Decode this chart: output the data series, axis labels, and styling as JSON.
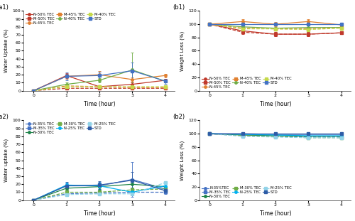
{
  "time": [
    0,
    1,
    2,
    3,
    4
  ],
  "a1": {
    "title": "(a1)",
    "ylabel": "Water Uptake (%)",
    "xlabel": "Time (hour)",
    "ylim": [
      0,
      100
    ],
    "yticks": [
      0,
      10,
      20,
      30,
      40,
      50,
      60,
      70,
      80,
      90,
      100
    ],
    "legend_loc": "upper left",
    "legend_inside": true,
    "series": [
      {
        "label": "N-50% TEC",
        "color": "#c0392b",
        "linestyle": "-",
        "marker": "o",
        "values": [
          0,
          19,
          5,
          8,
          13
        ],
        "yerr": [
          0,
          3,
          1,
          2,
          2
        ]
      },
      {
        "label": "M-50% TEC",
        "color": "#c0392b",
        "linestyle": "--",
        "marker": "s",
        "values": [
          0,
          3,
          3,
          3,
          3
        ],
        "yerr": [
          0,
          1,
          1,
          1,
          1
        ]
      },
      {
        "label": "N-45% TEC",
        "color": "#e08030",
        "linestyle": "-",
        "marker": "o",
        "values": [
          0,
          18,
          20,
          14,
          19
        ],
        "yerr": [
          0,
          3,
          5,
          3,
          2
        ]
      },
      {
        "label": "M-45% TEC",
        "color": "#e08030",
        "linestyle": "--",
        "marker": "s",
        "values": [
          0,
          6,
          5,
          4,
          4
        ],
        "yerr": [
          0,
          1,
          1,
          1,
          1
        ]
      },
      {
        "label": "N-40% TEC",
        "color": "#70ad47",
        "linestyle": "-",
        "marker": "o",
        "values": [
          0,
          8,
          13,
          26,
          12
        ],
        "yerr": [
          0,
          2,
          3,
          22,
          2
        ]
      },
      {
        "label": "M-40% TEC",
        "color": "#c5d94a",
        "linestyle": "--",
        "marker": "s",
        "values": [
          0,
          5,
          5,
          5,
          5
        ],
        "yerr": [
          0,
          1,
          1,
          1,
          1
        ]
      },
      {
        "label": "STD",
        "color": "#4472c4",
        "linestyle": "-",
        "marker": "s",
        "values": [
          0,
          18,
          19,
          25,
          12
        ],
        "yerr": [
          0,
          5,
          5,
          10,
          3
        ]
      }
    ]
  },
  "b1": {
    "title": "(b1)",
    "ylabel": "Weight Loss (%)",
    "xlabel": "Time (hour)",
    "ylim": [
      0,
      120
    ],
    "yticks": [
      0,
      20,
      40,
      60,
      80,
      100,
      120
    ],
    "legend_loc": "lower left",
    "legend_inside": true,
    "series": [
      {
        "label": "N-50% TEC",
        "color": "#c0392b",
        "linestyle": "-",
        "marker": "o",
        "values": [
          100,
          90,
          85,
          85,
          87
        ],
        "yerr": [
          0,
          3,
          3,
          3,
          2
        ]
      },
      {
        "label": "M-50% TEC",
        "color": "#c0392b",
        "linestyle": "--",
        "marker": "s",
        "values": [
          100,
          88,
          85,
          85,
          87
        ],
        "yerr": [
          0,
          3,
          3,
          3,
          2
        ]
      },
      {
        "label": "N-45% TEC",
        "color": "#e08030",
        "linestyle": "-",
        "marker": "o",
        "values": [
          100,
          104,
          100,
          104,
          99
        ],
        "yerr": [
          0,
          4,
          3,
          4,
          2
        ]
      },
      {
        "label": "M-45% TEC",
        "color": "#e08030",
        "linestyle": "--",
        "marker": "s",
        "values": [
          100,
          94,
          93,
          93,
          95
        ],
        "yerr": [
          0,
          2,
          2,
          2,
          2
        ]
      },
      {
        "label": "N-40% TEC",
        "color": "#70ad47",
        "linestyle": "-",
        "marker": "o",
        "values": [
          100,
          96,
          94,
          95,
          95
        ],
        "yerr": [
          0,
          2,
          2,
          3,
          2
        ]
      },
      {
        "label": "M-40% TEC",
        "color": "#c5d94a",
        "linestyle": "--",
        "marker": "s",
        "values": [
          100,
          93,
          93,
          92,
          94
        ],
        "yerr": [
          0,
          2,
          2,
          2,
          2
        ]
      },
      {
        "label": "STD",
        "color": "#4472c4",
        "linestyle": "-",
        "marker": "s",
        "values": [
          100,
          100,
          100,
          100,
          100
        ],
        "yerr": [
          0,
          0,
          0,
          0,
          0
        ]
      }
    ]
  },
  "a2": {
    "title": "(a2)",
    "ylabel": "Water uptake (%)",
    "xlabel": "Time (hour)",
    "ylim": [
      0,
      100
    ],
    "yticks": [
      0,
      10,
      20,
      30,
      40,
      50,
      60,
      70,
      80,
      90,
      100
    ],
    "legend_loc": "upper left",
    "legend_inside": true,
    "series": [
      {
        "label": "N-35% TEC",
        "color": "#4472c4",
        "linestyle": "-",
        "marker": "o",
        "values": [
          0,
          18,
          18,
          26,
          14
        ],
        "yerr": [
          0,
          3,
          5,
          22,
          2
        ]
      },
      {
        "label": "M-35% TEC",
        "color": "#4472c4",
        "linestyle": "--",
        "marker": "s",
        "values": [
          0,
          8,
          9,
          10,
          10
        ],
        "yerr": [
          0,
          2,
          2,
          2,
          2
        ]
      },
      {
        "label": "N-30% TEC",
        "color": "#1e8449",
        "linestyle": "-",
        "marker": "o",
        "values": [
          0,
          15,
          17,
          20,
          17
        ],
        "yerr": [
          0,
          3,
          4,
          4,
          3
        ]
      },
      {
        "label": "M-30% TEC",
        "color": "#70ad47",
        "linestyle": "--",
        "marker": "s",
        "values": [
          0,
          10,
          10,
          13,
          14
        ],
        "yerr": [
          0,
          2,
          2,
          3,
          2
        ]
      },
      {
        "label": "N-25% TEC",
        "color": "#00b0f0",
        "linestyle": "-",
        "marker": "o",
        "values": [
          0,
          19,
          18,
          10,
          18
        ],
        "yerr": [
          0,
          3,
          4,
          3,
          4
        ]
      },
      {
        "label": "M-25% TEC",
        "color": "#92d3e8",
        "linestyle": "--",
        "marker": "s",
        "values": [
          0,
          7,
          8,
          8,
          22
        ],
        "yerr": [
          0,
          1,
          1,
          1,
          2
        ]
      },
      {
        "label": "STD",
        "color": "#2e5ca6",
        "linestyle": "-",
        "marker": "s",
        "values": [
          0,
          18,
          19,
          25,
          12
        ],
        "yerr": [
          0,
          5,
          5,
          10,
          3
        ]
      }
    ]
  },
  "b2": {
    "title": "(b2)",
    "ylabel": "Weight Loss (%)",
    "xlabel": "Time (hour)",
    "ylim": [
      0,
      120
    ],
    "yticks": [
      0,
      20,
      40,
      60,
      80,
      100,
      120
    ],
    "legend_loc": "lower left",
    "legend_inside": true,
    "series": [
      {
        "label": "N-35%TEC",
        "color": "#4472c4",
        "linestyle": "-",
        "marker": "o",
        "values": [
          100,
          100,
          99,
          99,
          99
        ],
        "yerr": [
          0,
          2,
          2,
          2,
          2
        ]
      },
      {
        "label": "M-35% TEC",
        "color": "#4472c4",
        "linestyle": "--",
        "marker": "s",
        "values": [
          100,
          97,
          96,
          95,
          95
        ],
        "yerr": [
          0,
          2,
          2,
          2,
          2
        ]
      },
      {
        "label": "N-30% TEC",
        "color": "#1e8449",
        "linestyle": "-",
        "marker": "o",
        "values": [
          100,
          98,
          97,
          96,
          96
        ],
        "yerr": [
          0,
          2,
          2,
          2,
          2
        ]
      },
      {
        "label": "M-30% TEC",
        "color": "#70ad47",
        "linestyle": "--",
        "marker": "s",
        "values": [
          100,
          97,
          96,
          94,
          94
        ],
        "yerr": [
          0,
          2,
          2,
          2,
          2
        ]
      },
      {
        "label": "N-25% TEC",
        "color": "#00b0f0",
        "linestyle": "-",
        "marker": "o",
        "values": [
          100,
          99,
          98,
          97,
          97
        ],
        "yerr": [
          0,
          2,
          2,
          2,
          2
        ]
      },
      {
        "label": "M-25% TEC",
        "color": "#92d3e8",
        "linestyle": "--",
        "marker": "s",
        "values": [
          100,
          96,
          95,
          94,
          94
        ],
        "yerr": [
          0,
          2,
          2,
          2,
          2
        ]
      },
      {
        "label": "STD",
        "color": "#2e5ca6",
        "linestyle": "-",
        "marker": "s",
        "values": [
          100,
          100,
          100,
          100,
          100
        ],
        "yerr": [
          0,
          0,
          0,
          0,
          0
        ]
      }
    ]
  }
}
